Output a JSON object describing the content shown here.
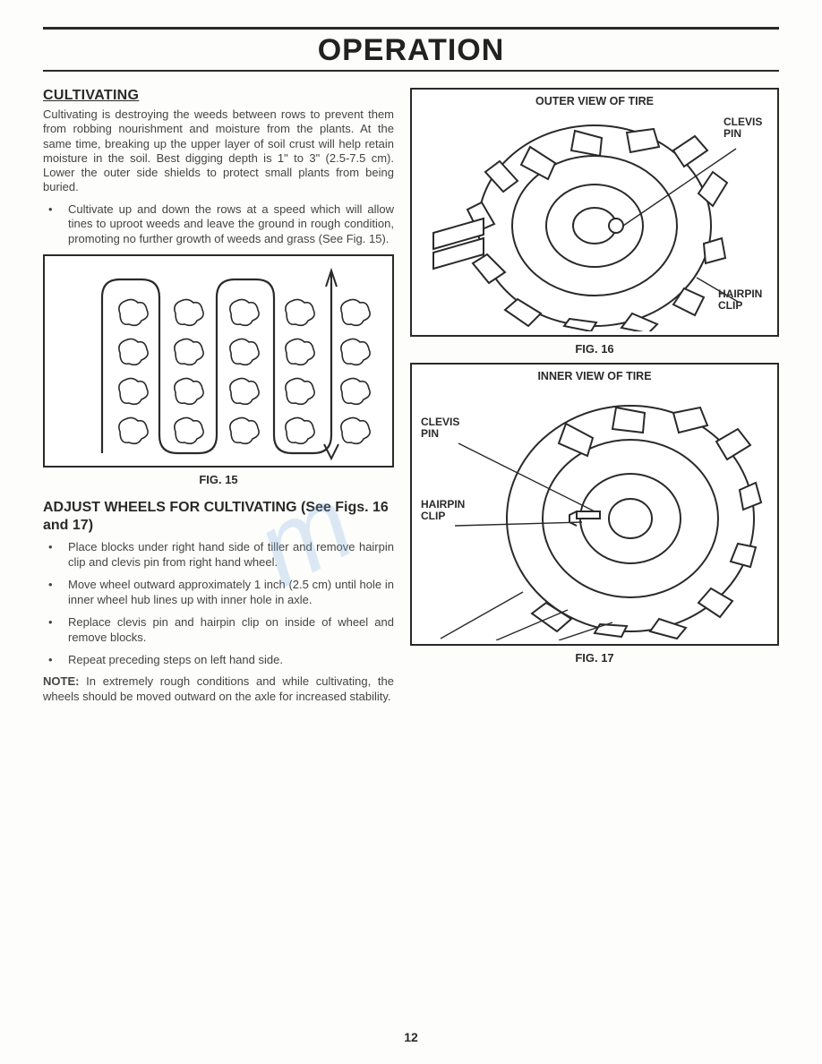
{
  "title": "OPERATION",
  "left": {
    "cultivating": {
      "heading": "CULTIVATING",
      "para": "Cultivating is destroying the weeds between rows to prevent them from robbing nourishment and moisture from the plants. At the same time, breaking up the upper layer of soil crust will help retain moisture in the soil. Best digging depth is 1\" to 3\" (2.5-7.5 cm).  Lower the outer side shields to protect small plants from being buried.",
      "bullets": [
        "Cultivate up and down the rows at a speed which will allow tines to uproot weeds and leave the ground in rough condition, promoting no further growth of weeds and grass (See Fig. 15)."
      ],
      "fig_caption": "FIG. 15"
    },
    "adjust": {
      "heading": "ADJUST WHEELS FOR CULTIVATING (See Figs. 16 and 17)",
      "bullets": [
        "Place blocks under right hand side of tiller and remove hairpin clip and clevis pin from right hand wheel.",
        "Move wheel outward approximately 1 inch (2.5 cm) until hole in inner wheel hub lines up with inner hole in axle.",
        "Replace clevis pin and hairpin clip on inside of wheel and remove blocks.",
        "Repeat preceding steps on left hand side."
      ],
      "note_label": "NOTE:",
      "note": " In extremely rough conditions and while cultivating, the wheels should be moved outward on the axle for increased stability."
    }
  },
  "right": {
    "fig16": {
      "title": "OUTER VIEW OF TIRE",
      "label_clevis": "CLEVIS PIN",
      "label_hairpin": "HAIRPIN CLIP",
      "caption": "FIG. 16"
    },
    "fig17": {
      "title": "INNER VIEW OF TIRE",
      "label_clevis": "CLEVIS PIN",
      "label_hairpin": "HAIRPIN CLIP",
      "caption": "FIG. 17"
    }
  },
  "page_number": "12",
  "colors": {
    "line": "#2a2a2a",
    "text": "#444444",
    "watermark": "rgba(120,170,225,0.25)"
  }
}
